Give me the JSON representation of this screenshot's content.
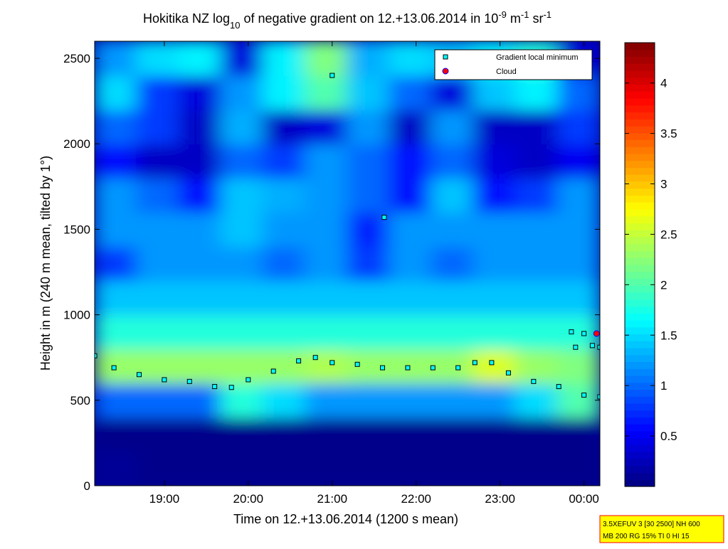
{
  "chart_data": {
    "type": "heatmap",
    "title": [
      "Hokitika NZ log",
      "10",
      " of negative gradient on 12.+13.06.2014 in 10",
      "-9",
      " m",
      "-1",
      " sr",
      "-1"
    ],
    "x_label": "Time on 12.+13.06.2014 (1200 s mean)",
    "y_label": "Height in m (240 m mean, tilted by 1°)",
    "xlim": [
      18.17,
      24.19
    ],
    "xticks": [
      {
        "value": 19,
        "label": "19:00"
      },
      {
        "value": 20,
        "label": "20:00"
      },
      {
        "value": 21,
        "label": "21:00"
      },
      {
        "value": 22,
        "label": "22:00"
      },
      {
        "value": 23,
        "label": "23:00"
      },
      {
        "value": 24,
        "label": "00:00"
      }
    ],
    "ylim": [
      0,
      2600
    ],
    "yticks": [
      0,
      500,
      1000,
      1500,
      2000,
      2500
    ],
    "colormap": "jet",
    "clim": [
      0,
      4.4
    ],
    "cticks": [
      0.5,
      1,
      1.5,
      2,
      2.5,
      3,
      3.5,
      4
    ],
    "z": [
      [
        0.1,
        0.05,
        0.05,
        0.05,
        0.05,
        0.05,
        0.05,
        0.05,
        0.05,
        0.05,
        0.05,
        0.05
      ],
      [
        0.05,
        0.05,
        0.05,
        0.05,
        0.05,
        0.05,
        0.05,
        0.05,
        0.05,
        0.05,
        0.05,
        0.05
      ],
      [
        1.0,
        1.0,
        1.0,
        1.8,
        1.5,
        1.2,
        1.2,
        1.2,
        1.2,
        1.2,
        1.5,
        2.0
      ],
      [
        2.3,
        2.3,
        2.3,
        2.3,
        2.3,
        2.4,
        2.3,
        2.3,
        2.3,
        2.6,
        2.3,
        2.2
      ],
      [
        1.8,
        1.8,
        1.8,
        1.8,
        1.8,
        1.8,
        1.8,
        1.8,
        1.8,
        1.8,
        1.8,
        1.8
      ],
      [
        1.4,
        1.4,
        1.4,
        1.4,
        1.4,
        1.4,
        1.4,
        1.4,
        1.4,
        1.4,
        1.4,
        1.4
      ],
      [
        0.8,
        1.2,
        1.2,
        1.2,
        1.0,
        1.2,
        0.8,
        1.2,
        1.0,
        1.2,
        1.2,
        1.2
      ],
      [
        1.2,
        1.2,
        1.2,
        1.4,
        1.2,
        1.2,
        0.7,
        1.2,
        1.2,
        1.2,
        1.2,
        1.2
      ],
      [
        1.2,
        1.0,
        0.6,
        1.4,
        1.3,
        1.2,
        1.0,
        0.6,
        1.4,
        0.6,
        0.8,
        1.2
      ],
      [
        0.6,
        0.3,
        0.3,
        1.0,
        0.8,
        1.2,
        1.0,
        0.6,
        1.0,
        0.4,
        0.3,
        0.5
      ],
      [
        1.0,
        0.8,
        0.3,
        1.3,
        0.3,
        0.4,
        1.2,
        0.3,
        1.2,
        0.3,
        0.3,
        0.8
      ],
      [
        1.5,
        0.8,
        0.4,
        1.2,
        1.6,
        2.0,
        1.4,
        1.0,
        0.4,
        1.4,
        1.6,
        1.0
      ],
      [
        1.2,
        1.5,
        1.6,
        0.4,
        1.6,
        2.2,
        1.3,
        1.5,
        1.4,
        1.6,
        1.8,
        0.4
      ]
    ],
    "series": [
      {
        "name": "Gradient local minimum",
        "color": "#00ffff",
        "x": [
          18.17,
          18.4,
          18.7,
          19.0,
          19.3,
          19.6,
          19.8,
          20.0,
          20.3,
          20.6,
          20.8,
          21.0,
          21.3,
          21.6,
          21.9,
          22.2,
          22.5,
          22.7,
          22.9,
          23.1,
          23.4,
          23.7,
          24.0,
          24.19,
          21.0,
          21.62,
          23.85,
          23.9,
          24.0,
          24.1,
          24.19
        ],
        "y": [
          760,
          690,
          650,
          620,
          610,
          580,
          575,
          620,
          670,
          730,
          750,
          720,
          710,
          690,
          690,
          690,
          690,
          720,
          720,
          660,
          610,
          580,
          530,
          520,
          2400,
          1570,
          900,
          810,
          890,
          820,
          810
        ]
      },
      {
        "name": "Cloud",
        "color": "#ff0000",
        "x": [
          24.15
        ],
        "y": [
          890
        ]
      }
    ],
    "info": [
      "3.5XEFUV 3 [30 2500] NH 600",
      "MB 200 RG 15% TI 0 HI 15"
    ]
  }
}
